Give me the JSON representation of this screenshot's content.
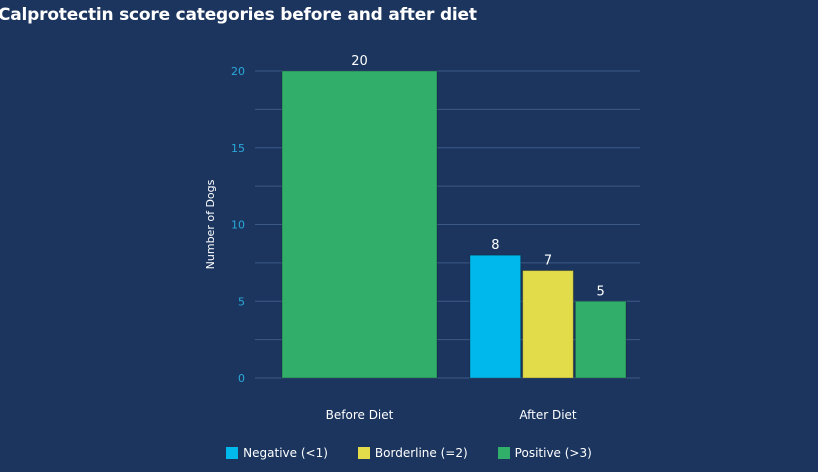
{
  "chart_data": {
    "type": "bar",
    "title": "Calprotectin score categories before and after diet",
    "xlabel": "",
    "ylabel": "Number of Dogs",
    "ylim": [
      0,
      20
    ],
    "yticks": [
      "0",
      "5",
      "10",
      "15",
      "20"
    ],
    "grid": true,
    "legend_position": "bottom",
    "categories": [
      "Before Diet",
      "After Diet"
    ],
    "series": [
      {
        "name": "Negative (<1)",
        "color": "#00b8eb",
        "values": [
          0,
          8
        ]
      },
      {
        "name": "Borderline (=2)",
        "color": "#e2dc4a",
        "values": [
          0,
          7
        ]
      },
      {
        "name": "Positive (>3)",
        "color": "#32ae6b",
        "values": [
          20,
          5
        ]
      }
    ]
  },
  "colors": {
    "background": "#1b355f",
    "gridline": "#3c5a85",
    "tick_label": "#2aa9d8"
  }
}
